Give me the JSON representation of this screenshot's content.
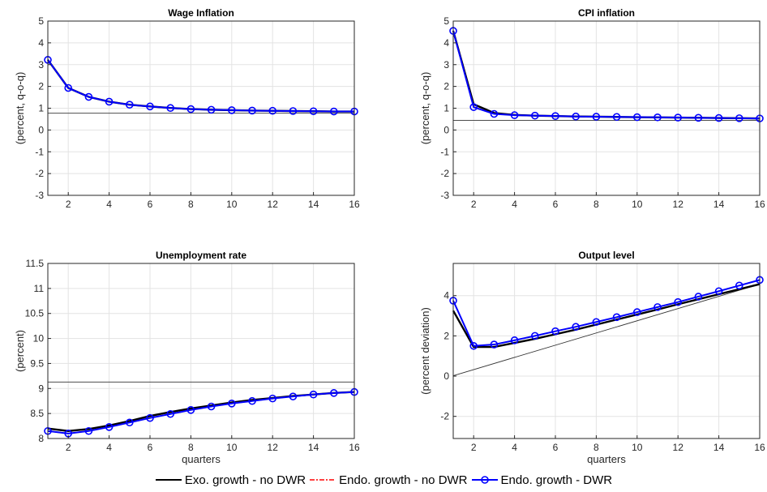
{
  "chart_data": [
    {
      "type": "line",
      "title": "Wage Inflation",
      "ylabel": "(percent, q-o-q)",
      "xlabel": "",
      "xlim": [
        1,
        16
      ],
      "ylim": [
        -3,
        5
      ],
      "xticks": [
        2,
        4,
        6,
        8,
        10,
        12,
        14,
        16
      ],
      "yticks": [
        -3,
        -2,
        -1,
        0,
        1,
        2,
        3,
        4,
        5
      ],
      "grid": true,
      "x": [
        1,
        2,
        3,
        4,
        5,
        6,
        7,
        8,
        9,
        10,
        11,
        12,
        13,
        14,
        15,
        16
      ],
      "baseline": {
        "x": [
          1,
          16
        ],
        "y": [
          0.77,
          0.77
        ]
      },
      "series": [
        {
          "name": "Exo. growth - no DWR",
          "style": "solid",
          "color": "#000000",
          "values": [
            3.22,
            1.93,
            1.52,
            1.3,
            1.16,
            1.08,
            1.01,
            0.96,
            0.93,
            0.91,
            0.89,
            0.88,
            0.87,
            0.86,
            0.85,
            0.85
          ]
        },
        {
          "name": "Endo. growth - no DWR",
          "style": "dashdot",
          "color": "#ff0000",
          "values": [
            3.22,
            1.93,
            1.52,
            1.3,
            1.16,
            1.08,
            1.01,
            0.96,
            0.93,
            0.91,
            0.89,
            0.88,
            0.87,
            0.86,
            0.85,
            0.85
          ]
        },
        {
          "name": "Endo. growth - DWR",
          "style": "marker",
          "color": "#0000ff",
          "values": [
            3.22,
            1.93,
            1.52,
            1.3,
            1.16,
            1.08,
            1.01,
            0.96,
            0.93,
            0.91,
            0.89,
            0.88,
            0.87,
            0.86,
            0.85,
            0.85
          ]
        }
      ]
    },
    {
      "type": "line",
      "title": "CPI inflation",
      "ylabel": "(percent, q-o-q)",
      "xlabel": "",
      "xlim": [
        1,
        16
      ],
      "ylim": [
        -3,
        5
      ],
      "xticks": [
        2,
        4,
        6,
        8,
        10,
        12,
        14,
        16
      ],
      "yticks": [
        -3,
        -2,
        -1,
        0,
        1,
        2,
        3,
        4,
        5
      ],
      "grid": true,
      "x": [
        1,
        2,
        3,
        4,
        5,
        6,
        7,
        8,
        9,
        10,
        11,
        12,
        13,
        14,
        15,
        16
      ],
      "baseline": {
        "x": [
          1,
          16
        ],
        "y": [
          0.44,
          0.44
        ]
      },
      "series": [
        {
          "name": "Exo. growth - no DWR",
          "style": "solid",
          "color": "#000000",
          "values": [
            4.55,
            1.18,
            0.78,
            0.69,
            0.66,
            0.64,
            0.62,
            0.61,
            0.6,
            0.59,
            0.58,
            0.57,
            0.56,
            0.55,
            0.54,
            0.53
          ]
        },
        {
          "name": "Endo. growth - no DWR",
          "style": "dashdot",
          "color": "#ff0000",
          "values": [
            4.55,
            1.06,
            0.74,
            0.68,
            0.66,
            0.64,
            0.62,
            0.61,
            0.6,
            0.59,
            0.58,
            0.57,
            0.56,
            0.55,
            0.54,
            0.53
          ]
        },
        {
          "name": "Endo. growth - DWR",
          "style": "marker",
          "color": "#0000ff",
          "values": [
            4.55,
            1.05,
            0.74,
            0.68,
            0.66,
            0.64,
            0.62,
            0.61,
            0.6,
            0.59,
            0.58,
            0.57,
            0.56,
            0.55,
            0.54,
            0.53
          ]
        }
      ]
    },
    {
      "type": "line",
      "title": "Unemployment rate",
      "ylabel": "(percent)",
      "xlabel": "quarters",
      "xlim": [
        1,
        16
      ],
      "ylim": [
        8,
        11.5
      ],
      "xticks": [
        2,
        4,
        6,
        8,
        10,
        12,
        14,
        16
      ],
      "yticks": [
        8,
        8.5,
        9,
        9.5,
        10,
        10.5,
        11,
        11.5
      ],
      "grid": true,
      "x": [
        1,
        2,
        3,
        4,
        5,
        6,
        7,
        8,
        9,
        10,
        11,
        12,
        13,
        14,
        15,
        16
      ],
      "baseline": {
        "x": [
          1,
          16
        ],
        "y": [
          9.13,
          9.13
        ]
      },
      "series": [
        {
          "name": "Exo. growth - no DWR",
          "style": "solid",
          "color": "#000000",
          "values": [
            8.2,
            8.15,
            8.19,
            8.26,
            8.35,
            8.45,
            8.53,
            8.6,
            8.66,
            8.72,
            8.77,
            8.81,
            8.85,
            8.88,
            8.91,
            8.93
          ]
        },
        {
          "name": "Endo. growth - no DWR",
          "style": "dashdot",
          "color": "#ff0000",
          "values": [
            8.15,
            8.1,
            8.15,
            8.23,
            8.32,
            8.41,
            8.49,
            8.57,
            8.64,
            8.7,
            8.75,
            8.8,
            8.84,
            8.88,
            8.91,
            8.93
          ]
        },
        {
          "name": "Endo. growth - DWR",
          "style": "marker",
          "color": "#0000ff",
          "values": [
            8.15,
            8.1,
            8.15,
            8.23,
            8.32,
            8.41,
            8.49,
            8.57,
            8.64,
            8.7,
            8.75,
            8.8,
            8.84,
            8.88,
            8.91,
            8.93
          ]
        }
      ]
    },
    {
      "type": "line",
      "title": "Output level",
      "ylabel": "(percent deviation)",
      "xlabel": "quarters",
      "xlim": [
        1,
        16
      ],
      "ylim": [
        -3.1,
        5.6
      ],
      "xticks": [
        2,
        4,
        6,
        8,
        10,
        12,
        14,
        16
      ],
      "yticks": [
        -2,
        0,
        2,
        4
      ],
      "grid": true,
      "x": [
        1,
        2,
        3,
        4,
        5,
        6,
        7,
        8,
        9,
        10,
        11,
        12,
        13,
        14,
        15,
        16
      ],
      "baseline": {
        "x": [
          1,
          16
        ],
        "y": [
          0.02,
          4.57
        ]
      },
      "series": [
        {
          "name": "Exo. growth - no DWR",
          "style": "solid",
          "color": "#000000",
          "values": [
            3.25,
            1.45,
            1.45,
            1.65,
            1.85,
            2.08,
            2.31,
            2.56,
            2.81,
            3.06,
            3.31,
            3.57,
            3.82,
            4.07,
            4.32,
            4.57
          ]
        },
        {
          "name": "Endo. growth - no DWR",
          "style": "dashdot",
          "color": "#ff0000",
          "values": [
            3.75,
            1.5,
            1.57,
            1.78,
            2.0,
            2.23,
            2.45,
            2.69,
            2.93,
            3.18,
            3.43,
            3.68,
            3.95,
            4.22,
            4.5,
            4.78
          ]
        },
        {
          "name": "Endo. growth - DWR",
          "style": "marker",
          "color": "#0000ff",
          "values": [
            3.75,
            1.5,
            1.57,
            1.78,
            2.0,
            2.23,
            2.45,
            2.69,
            2.93,
            3.18,
            3.43,
            3.68,
            3.95,
            4.22,
            4.5,
            4.78
          ]
        }
      ]
    }
  ],
  "legend": {
    "placement": "bottom-center",
    "items": [
      {
        "label": "Exo. growth - no DWR",
        "color": "#000000",
        "style": "solid"
      },
      {
        "label": "Endo. growth - no DWR",
        "color": "#ff0000",
        "style": "dashdot"
      },
      {
        "label": "Endo. growth - DWR",
        "color": "#0000ff",
        "style": "marker"
      }
    ]
  }
}
